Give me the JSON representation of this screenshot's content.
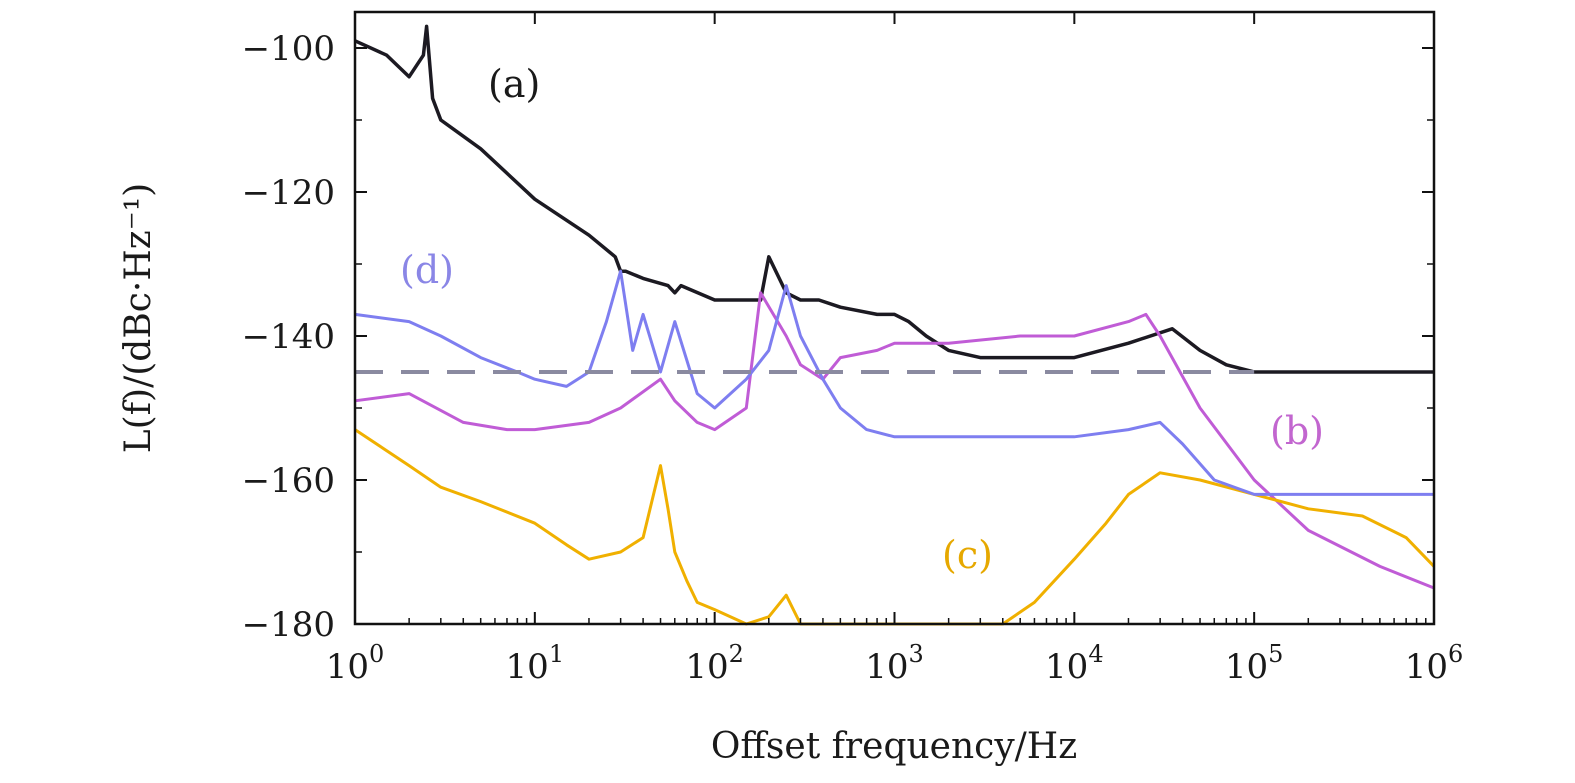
{
  "chart_data": {
    "type": "line",
    "x_scale": "log",
    "xlim": [
      1,
      1000000
    ],
    "ylim": [
      -180,
      -95
    ],
    "grid": false,
    "xlabel": "Offset frequency/Hz",
    "ylabel": "L(f)/(dBc·Hz⁻¹)",
    "x_ticks": [
      {
        "value": 1,
        "base": "10",
        "exp": "0"
      },
      {
        "value": 10,
        "base": "10",
        "exp": "1"
      },
      {
        "value": 100,
        "base": "10",
        "exp": "2"
      },
      {
        "value": 1000,
        "base": "10",
        "exp": "3"
      },
      {
        "value": 10000,
        "base": "10",
        "exp": "4"
      },
      {
        "value": 100000,
        "base": "10",
        "exp": "5"
      },
      {
        "value": 1000000,
        "base": "10",
        "exp": "6"
      }
    ],
    "y_ticks": [
      {
        "value": -100,
        "label": "−100"
      },
      {
        "value": -120,
        "label": "−120"
      },
      {
        "value": -140,
        "label": "−140"
      },
      {
        "value": -160,
        "label": "−160"
      },
      {
        "value": -180,
        "label": "−180"
      }
    ],
    "reference_line": {
      "y": -145,
      "style": "dashed",
      "color": "#8a8aa0"
    },
    "series": [
      {
        "label": "(a)",
        "color": "#1c1a22",
        "label_color": "#1a1a1a",
        "x": [
          1,
          1.5,
          2,
          2.4,
          2.5,
          2.7,
          3,
          5,
          10,
          20,
          28,
          30,
          32,
          40,
          55,
          60,
          65,
          100,
          180,
          200,
          250,
          300,
          380,
          500,
          800,
          1000,
          1200,
          1500,
          2000,
          3000,
          5000,
          10000,
          20000,
          35000,
          50000,
          70000,
          100000,
          200000,
          500000,
          1000000
        ],
        "y": [
          -99,
          -101,
          -104,
          -101,
          -97,
          -107,
          -110,
          -114,
          -121,
          -126,
          -129,
          -131,
          -131,
          -132,
          -133,
          -134,
          -133,
          -135,
          -135,
          -129,
          -134,
          -135,
          -135,
          -136,
          -137,
          -137,
          -138,
          -140,
          -142,
          -143,
          -143,
          -143,
          -141,
          -139,
          -142,
          -144,
          -145,
          -145,
          -145,
          -145
        ]
      },
      {
        "label": "(b)",
        "color": "#c05cd6",
        "label_color": "#c266cf",
        "x": [
          1,
          2,
          4,
          7,
          10,
          20,
          30,
          50,
          60,
          80,
          100,
          150,
          180,
          250,
          300,
          400,
          500,
          800,
          1000,
          2000,
          5000,
          10000,
          20000,
          25000,
          30000,
          50000,
          100000,
          200000,
          500000,
          1000000
        ],
        "y": [
          -149,
          -148,
          -152,
          -153,
          -153,
          -152,
          -150,
          -146,
          -149,
          -152,
          -153,
          -150,
          -134,
          -140,
          -144,
          -146,
          -143,
          -142,
          -141,
          -141,
          -140,
          -140,
          -138,
          -137,
          -140,
          -150,
          -160,
          -167,
          -172,
          -175
        ]
      },
      {
        "label": "(c)",
        "color": "#f0b000",
        "label_color": "#e6a800",
        "x": [
          1,
          2,
          3,
          5,
          10,
          15,
          20,
          30,
          40,
          50,
          55,
          60,
          70,
          80,
          100,
          150,
          200,
          250,
          300,
          400,
          500,
          700,
          1000,
          2000,
          4000,
          6000,
          10000,
          15000,
          20000,
          30000,
          50000,
          100000,
          200000,
          400000,
          700000,
          1000000
        ],
        "y": [
          -153,
          -158,
          -161,
          -163,
          -166,
          -169,
          -171,
          -170,
          -168,
          -158,
          -164,
          -170,
          -174,
          -177,
          -178,
          -180,
          -179,
          -176,
          -180,
          -180,
          -180,
          -180,
          -180,
          -180,
          -180,
          -177,
          -171,
          -166,
          -162,
          -159,
          -160,
          -162,
          -164,
          -165,
          -168,
          -172
        ]
      },
      {
        "label": "(d)",
        "color": "#7e7ef0",
        "label_color": "#8a86e6",
        "x": [
          1,
          2,
          3,
          5,
          8,
          10,
          15,
          20,
          25,
          30,
          35,
          40,
          50,
          60,
          80,
          100,
          150,
          200,
          250,
          300,
          400,
          500,
          700,
          1000,
          2000,
          5000,
          10000,
          20000,
          30000,
          40000,
          60000,
          100000,
          200000,
          500000,
          1000000
        ],
        "y": [
          -137,
          -138,
          -140,
          -143,
          -145,
          -146,
          -147,
          -145,
          -138,
          -131,
          -142,
          -137,
          -145,
          -138,
          -148,
          -150,
          -146,
          -142,
          -133,
          -140,
          -146,
          -150,
          -153,
          -154,
          -154,
          -154,
          -154,
          -153,
          -152,
          -155,
          -160,
          -162,
          -162,
          -162,
          -162
        ]
      }
    ]
  }
}
